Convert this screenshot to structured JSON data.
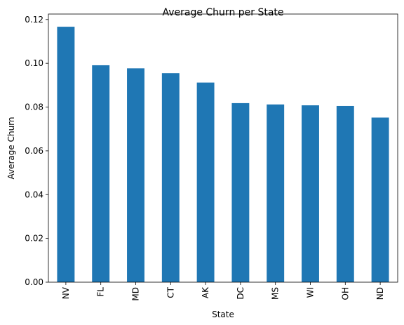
{
  "chart_data": {
    "type": "bar",
    "title": "Average Churn per State",
    "xlabel": "State",
    "ylabel": "Average Churn",
    "categories": [
      "NV",
      "FL",
      "MD",
      "CT",
      "AK",
      "DC",
      "MS",
      "WI",
      "OH",
      "ND"
    ],
    "values": [
      0.1167,
      0.0991,
      0.0977,
      0.0955,
      0.0912,
      0.0818,
      0.0812,
      0.0808,
      0.0805,
      0.0752
    ],
    "ylim": [
      0,
      0.1225
    ],
    "yticks": [
      "0.00",
      "0.02",
      "0.04",
      "0.06",
      "0.08",
      "0.10",
      "0.12"
    ],
    "bar_color": "#1f77b4",
    "grid": false,
    "legend": "none"
  }
}
